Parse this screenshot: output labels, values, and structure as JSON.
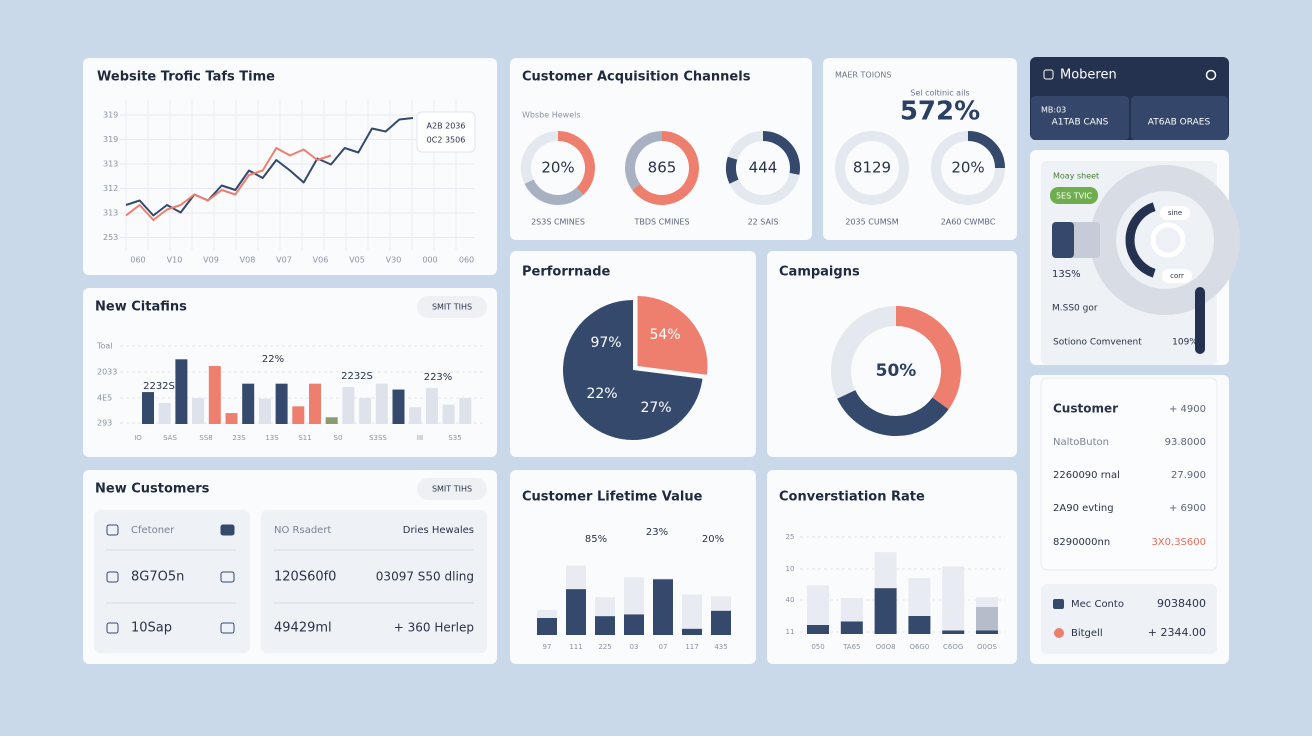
{
  "traffic": {
    "title": "Website Trofic Tafs Time",
    "y_labels": [
      "319",
      "319",
      "313",
      "312",
      "313",
      "253"
    ],
    "x_labels": [
      "060",
      "V10",
      "V09",
      "V08",
      "V07",
      "V06",
      "V05",
      "V30",
      "000",
      "060"
    ],
    "ylim": [
      0,
      100
    ],
    "series": [
      {
        "color": "#34496b",
        "values": [
          30,
          33,
          23,
          30,
          25,
          37,
          33,
          43,
          40,
          53,
          48,
          60,
          53,
          45,
          61,
          57,
          68,
          65,
          81,
          79,
          87,
          88
        ]
      },
      {
        "color": "#ee7f6e",
        "values": [
          23,
          30,
          20,
          27,
          30,
          37,
          33,
          40,
          37,
          50,
          53,
          68,
          63,
          67,
          60,
          63,
          null,
          null,
          null,
          null,
          null,
          null
        ]
      }
    ],
    "tooltip": [
      "A2B 2036",
      "0C2 3506"
    ]
  },
  "acquisition": {
    "title": "Customer Acquisition Channels",
    "subtitle": "Wbsbe Hewels",
    "donuts": [
      {
        "center": "20%",
        "footer": "2S3S CMINES",
        "segments": [
          {
            "value": 38,
            "color": "#ee7f6e"
          },
          {
            "value": 30,
            "color": "#a8b1c1"
          },
          {
            "value": 32,
            "color": "#e4e8ef"
          }
        ]
      },
      {
        "center": "865",
        "footer": "TBDS CMINES",
        "segments": [
          {
            "value": 65,
            "color": "#ee7f6e"
          },
          {
            "value": 35,
            "color": "#a8b1c1"
          }
        ]
      },
      {
        "center": "444",
        "footer": "22 SAIS",
        "segments": [
          {
            "value": 28,
            "color": "#34496b"
          },
          {
            "value": 40,
            "color": "#e4e8ef"
          },
          {
            "value": 12,
            "color": "#34496b"
          },
          {
            "value": 20,
            "color": "#e4e8ef"
          }
        ]
      }
    ]
  },
  "summary": {
    "label": "MAER TOIONS",
    "caption": "Sel coltinic ails",
    "big": "572%",
    "donuts": [
      {
        "center": "8129",
        "footer": "2035 CUMSM",
        "segments": [
          {
            "value": 100,
            "color": "#e4e8ef"
          }
        ]
      },
      {
        "center": "20%",
        "footer": "2A60 CWMBC",
        "segments": [
          {
            "value": 25,
            "color": "#34496b"
          },
          {
            "value": 75,
            "color": "#e4e8ef"
          }
        ]
      }
    ]
  },
  "menu": {
    "title": "Moberen",
    "buttons": [
      [
        "MB:03",
        "A1TAB CANS"
      ],
      [
        "AT6AB ORAES"
      ]
    ]
  },
  "sheet": {
    "label": "Moay sheet",
    "pill": "5ES TVIC",
    "tags": [
      "sine",
      "corr"
    ],
    "stat": "13S%",
    "sub": "M.SS0 gor",
    "footer": "Sotiono Comvenent",
    "footer_value": "109%"
  },
  "citations": {
    "title": "New Citafins",
    "button": "SMIT TIHS",
    "y_labels": [
      "Toal",
      "2033",
      "4E5",
      "293"
    ],
    "x_labels": [
      "IO",
      "SAS",
      "SS8",
      "23S",
      "13S",
      "S11",
      "S0",
      "S3SS",
      "III",
      "S35"
    ],
    "annotations": [
      "22%",
      "2232S",
      "2232S",
      "223%"
    ],
    "ylim": [
      0,
      100
    ],
    "values": [
      38,
      25,
      77,
      31,
      69,
      13,
      48,
      30,
      48,
      21,
      48,
      8,
      44,
      31,
      48,
      41,
      20,
      43,
      23,
      31
    ],
    "colors": [
      "#34496b",
      "#dde2eb",
      "#34496b",
      "#dde2eb",
      "#ee7f6e",
      "#ee7f6e",
      "#34496b",
      "#dde2eb",
      "#34496b",
      "#ee7f6e",
      "#ee7f6e",
      "#8c9a6e",
      "#dde2eb",
      "#dde2eb",
      "#dde2eb",
      "#34496b",
      "#dde2eb",
      "#dde2eb",
      "#dde2eb",
      "#dde2eb"
    ]
  },
  "new_customers": {
    "title": "New Customers",
    "button": "SMIT TIHS",
    "left": [
      "Cfetoner",
      "8G7O5n",
      "10Sap"
    ],
    "right": [
      [
        "NO Rsadert",
        "Dries Hewales"
      ],
      [
        "120S60f0",
        "03097 S50 dling"
      ],
      [
        "49429ml",
        "+ 360 Herlep"
      ]
    ]
  },
  "performance": {
    "title": "Perforrnade",
    "slices": [
      {
        "value": 27,
        "color": "#ee7f6e"
      },
      {
        "value": 73,
        "color": "#34496b"
      }
    ],
    "labels": [
      "97%",
      "54%",
      "22%",
      "27%"
    ]
  },
  "campaigns": {
    "title": "Campaigns",
    "center": "50%",
    "segments": [
      {
        "value": 35,
        "color": "#ee7f6e"
      },
      {
        "value": 33,
        "color": "#34496b"
      },
      {
        "value": 32,
        "color": "#e4e8ef"
      }
    ]
  },
  "lifetime": {
    "title": "Customer Lifetime Value",
    "annotations": [
      "85%",
      "23%",
      "20%"
    ],
    "x_labels": [
      "97",
      "111",
      "225",
      "03",
      "07",
      "117",
      "435"
    ],
    "ylim": [
      0,
      100
    ],
    "series": [
      {
        "color": "#34496b",
        "values": [
          19,
          51,
          21,
          23,
          62,
          7,
          27
        ]
      },
      {
        "color": "#e8ebf1",
        "values": [
          9,
          26,
          21,
          41,
          1,
          38,
          16
        ]
      }
    ]
  },
  "conversion": {
    "title": "Converstiation Rate",
    "y_labels": [
      "25",
      "10",
      "40",
      "11"
    ],
    "x_labels": [
      "050",
      "TA65",
      "O0O8",
      "O6G0",
      "C6OG",
      "O0OS"
    ],
    "ylim": [
      0,
      100
    ],
    "series": [
      {
        "color": "#34496b",
        "values": [
          10,
          14,
          51,
          20,
          4,
          4
        ]
      },
      {
        "color": "#b5bdca",
        "values": [
          0,
          0,
          0,
          0,
          0,
          26
        ]
      },
      {
        "color": "#e8ebf1",
        "values": [
          44,
          26,
          40,
          42,
          71,
          11
        ]
      }
    ]
  },
  "customer": {
    "rows": [
      [
        "Customer",
        "+ 4900"
      ],
      [
        "NaltoButon",
        "93.8000"
      ],
      [
        "2260090 rnal",
        "27.900"
      ],
      [
        "2A90 evting",
        "+ 6900"
      ],
      [
        "8290000nn",
        "3X0.3S600"
      ]
    ]
  },
  "totals": {
    "rows": [
      [
        "Mec Conto",
        "9038400"
      ],
      [
        "Bitgell",
        "+ 2344.00"
      ]
    ]
  }
}
